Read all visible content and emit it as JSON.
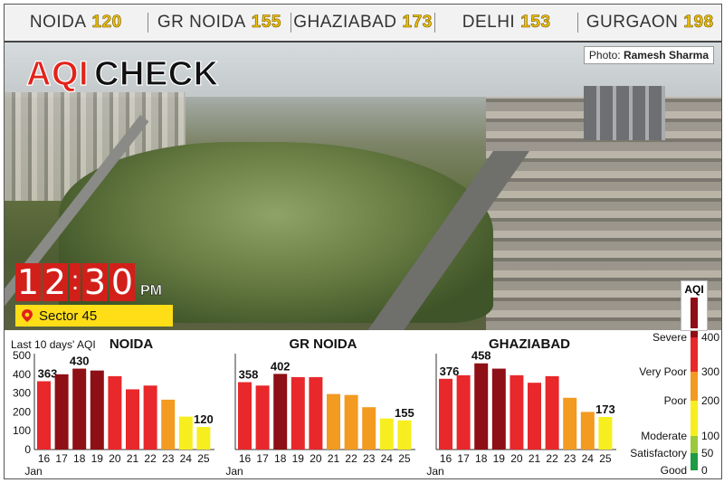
{
  "cities": [
    {
      "name": "NOIDA",
      "value": "120"
    },
    {
      "name": "GR NOIDA",
      "value": "155"
    },
    {
      "name": "GHAZIABAD",
      "value": "173"
    },
    {
      "name": "DELHI",
      "value": "153"
    },
    {
      "name": "GURGAON",
      "value": "198"
    }
  ],
  "photo_credit": {
    "prefix": "Photo:",
    "name": "Ramesh Sharma"
  },
  "title": {
    "part1": "AQI",
    "part2": "CHECK"
  },
  "time": {
    "d1": "1",
    "d2": "2",
    "d3": "3",
    "d4": "0",
    "colon": ":",
    "ampm": "PM"
  },
  "location": "Sector 45",
  "chart_data": [
    {
      "type": "bar",
      "title": "NOIDA",
      "subtitle": "Last 10 days' AQI",
      "categories": [
        "16",
        "17",
        "18",
        "19",
        "20",
        "21",
        "22",
        "23",
        "24",
        "25"
      ],
      "month_label": "Jan",
      "values": [
        363,
        400,
        430,
        420,
        390,
        320,
        340,
        265,
        175,
        120
      ],
      "labeled": {
        "0": "363",
        "2": "430",
        "9": "120"
      },
      "yticks": [
        "0",
        "100",
        "200",
        "300",
        "400",
        "500"
      ],
      "ylim": [
        0,
        500
      ]
    },
    {
      "type": "bar",
      "title": "GR NOIDA",
      "categories": [
        "16",
        "17",
        "18",
        "19",
        "20",
        "21",
        "22",
        "23",
        "24",
        "25"
      ],
      "month_label": "Jan",
      "values": [
        358,
        340,
        402,
        385,
        385,
        295,
        290,
        225,
        165,
        155
      ],
      "labeled": {
        "0": "358",
        "2": "402",
        "9": "155"
      },
      "ylim": [
        0,
        500
      ]
    },
    {
      "type": "bar",
      "title": "GHAZIABAD",
      "categories": [
        "16",
        "17",
        "18",
        "19",
        "20",
        "21",
        "22",
        "23",
        "24",
        "25"
      ],
      "month_label": "Jan",
      "values": [
        376,
        395,
        458,
        430,
        395,
        355,
        390,
        275,
        200,
        173
      ],
      "labeled": {
        "0": "376",
        "2": "458",
        "9": "173"
      },
      "ylim": [
        0,
        500
      ]
    }
  ],
  "legend": {
    "title": "AQI",
    "levels": [
      {
        "name": "Severe",
        "value": "400"
      },
      {
        "name": "Very Poor",
        "value": "300"
      },
      {
        "name": "Poor",
        "value": "200"
      },
      {
        "name": "Moderate",
        "value": "100"
      },
      {
        "name": "Satisfactory",
        "value": "50"
      },
      {
        "name": "Good",
        "value": "0"
      }
    ]
  },
  "colors": {
    "severe": "#8e0f15",
    "very_poor": "#e8282b",
    "poor": "#f39a21",
    "moderate": "#f7ee1f",
    "satisfactory": "#9cc93b",
    "good": "#1c9b43",
    "accent": "#d21f1a"
  }
}
